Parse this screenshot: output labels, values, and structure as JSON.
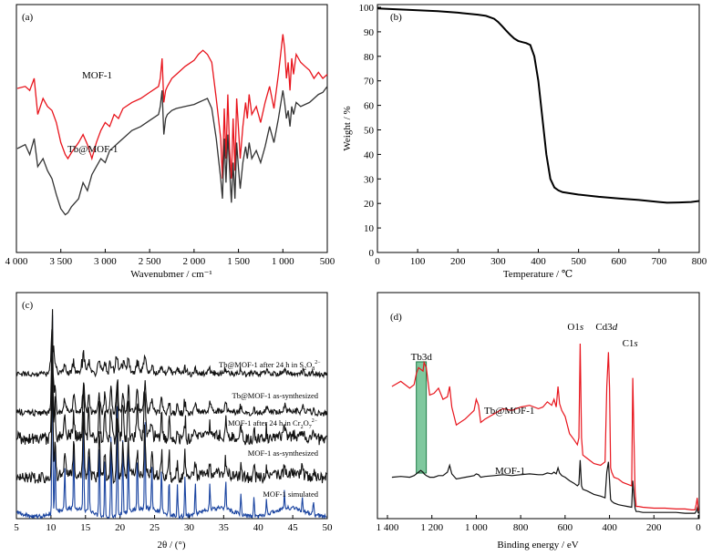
{
  "chart_data": [
    {
      "panel": "(a)",
      "type": "line",
      "xlabel": "Wavenubmer / cm⁻¹",
      "ylabel": "",
      "xlim": [
        4000,
        500
      ],
      "x_reversed": true,
      "xticks": [
        4000,
        3500,
        3000,
        2500,
        2000,
        1500,
        1000,
        500
      ],
      "xtick_labels": [
        "4 000",
        "3 500",
        "3 000",
        "2 500",
        "2 000",
        "1 500",
        "1 000",
        "500"
      ],
      "ylim": [
        0,
        100
      ],
      "y_ticks_shown": false,
      "grid": false,
      "annotations": [
        "MOF-1",
        "Tb@MOF-1"
      ],
      "series": [
        {
          "name": "MOF-1",
          "color": "#e8141c",
          "x": [
            3990,
            3900,
            3850,
            3800,
            3760,
            3700,
            3650,
            3600,
            3550,
            3500,
            3450,
            3420,
            3380,
            3300,
            3250,
            3200,
            3150,
            3100,
            3050,
            3000,
            2950,
            2900,
            2850,
            2800,
            2700,
            2600,
            2500,
            2400,
            2380,
            2360,
            2340,
            2320,
            2300,
            2250,
            2200,
            2100,
            2000,
            1950,
            1900,
            1850,
            1800,
            1750,
            1700,
            1680,
            1660,
            1640,
            1620,
            1600,
            1580,
            1560,
            1540,
            1520,
            1500,
            1480,
            1450,
            1420,
            1400,
            1380,
            1350,
            1300,
            1250,
            1200,
            1150,
            1100,
            1050,
            1000,
            980,
            960,
            940,
            920,
            900,
            880,
            850,
            800,
            750,
            700,
            650,
            600,
            550,
            500
          ],
          "y": [
            65,
            66,
            64,
            70,
            52,
            60,
            56,
            54,
            48,
            38,
            32,
            30,
            33,
            38,
            42,
            37,
            30,
            38,
            44,
            48,
            46,
            52,
            50,
            55,
            58,
            60,
            63,
            66,
            70,
            80,
            58,
            64,
            66,
            70,
            72,
            76,
            79,
            82,
            84,
            82,
            78,
            60,
            40,
            20,
            55,
            30,
            62,
            35,
            20,
            50,
            24,
            60,
            45,
            30,
            46,
            58,
            50,
            62,
            52,
            56,
            48,
            58,
            66,
            55,
            72,
            92,
            85,
            70,
            78,
            64,
            80,
            72,
            82,
            78,
            76,
            74,
            70,
            73,
            70,
            72
          ]
        },
        {
          "name": "Tb@MOF-1",
          "color": "#333333",
          "x": [
            3990,
            3900,
            3850,
            3800,
            3760,
            3700,
            3650,
            3600,
            3550,
            3500,
            3450,
            3420,
            3380,
            3300,
            3250,
            3200,
            3150,
            3100,
            3050,
            3000,
            2950,
            2900,
            2850,
            2800,
            2700,
            2600,
            2500,
            2400,
            2380,
            2360,
            2340,
            2320,
            2300,
            2250,
            2200,
            2100,
            2000,
            1950,
            1900,
            1850,
            1800,
            1750,
            1700,
            1680,
            1660,
            1640,
            1620,
            1600,
            1580,
            1560,
            1540,
            1520,
            1500,
            1480,
            1450,
            1420,
            1400,
            1380,
            1350,
            1300,
            1250,
            1200,
            1150,
            1100,
            1050,
            1000,
            980,
            960,
            940,
            920,
            900,
            880,
            850,
            800,
            750,
            700,
            650,
            600,
            550,
            500
          ],
          "y": [
            35,
            37,
            32,
            40,
            26,
            30,
            24,
            20,
            12,
            5,
            2,
            3,
            6,
            10,
            18,
            14,
            22,
            26,
            30,
            28,
            34,
            36,
            38,
            40,
            44,
            46,
            49,
            52,
            56,
            64,
            42,
            50,
            52,
            54,
            55,
            56,
            57,
            58,
            59,
            60,
            55,
            40,
            20,
            10,
            40,
            18,
            42,
            25,
            8,
            28,
            10,
            38,
            25,
            15,
            28,
            36,
            30,
            38,
            30,
            34,
            28,
            36,
            46,
            38,
            50,
            64,
            58,
            50,
            54,
            46,
            56,
            52,
            58,
            56,
            57,
            58,
            60,
            62,
            63,
            66
          ]
        }
      ]
    },
    {
      "panel": "(b)",
      "type": "line",
      "xlabel": "Temperature / ℃",
      "ylabel": "Weight / %",
      "xlim": [
        0,
        800
      ],
      "ylim": [
        0,
        100
      ],
      "xticks": [
        0,
        100,
        200,
        300,
        400,
        500,
        600,
        700,
        800
      ],
      "yticks": [
        0,
        10,
        20,
        30,
        40,
        50,
        60,
        70,
        80,
        90,
        100
      ],
      "grid": false,
      "series": [
        {
          "name": "",
          "color": "#000000",
          "x": [
            0,
            50,
            100,
            150,
            200,
            250,
            270,
            290,
            300,
            310,
            320,
            330,
            340,
            350,
            360,
            370,
            380,
            390,
            400,
            410,
            420,
            430,
            440,
            450,
            460,
            500,
            550,
            600,
            650,
            700,
            720,
            750,
            780,
            800
          ],
          "y": [
            99.5,
            99.2,
            98.8,
            98.4,
            97.8,
            97.0,
            96.5,
            95.3,
            94.0,
            92.3,
            90.5,
            88.8,
            87.3,
            86.3,
            85.8,
            85.4,
            84.6,
            80,
            70,
            55,
            40,
            30,
            26.5,
            25.3,
            24.6,
            23.6,
            22.7,
            22,
            21.4,
            20.6,
            20.3,
            20.4,
            20.6,
            21
          ]
        }
      ]
    },
    {
      "panel": "(c)",
      "type": "line",
      "xlabel": "2θ / (°)",
      "ylabel": "",
      "xlim": [
        5,
        50
      ],
      "xticks": [
        5,
        10,
        15,
        20,
        25,
        30,
        35,
        40,
        45,
        50
      ],
      "y_ticks_shown": false,
      "grid": false,
      "peaks_2theta": [
        10.2,
        10.6,
        12.0,
        13.3,
        14.7,
        15.5,
        17.0,
        17.8,
        18.7,
        19.6,
        20.4,
        21.2,
        22.5,
        23.6,
        24.6,
        26.0,
        27.1,
        28.3,
        29.4,
        30.9,
        33.0,
        35.3,
        37.5,
        39.4,
        41.2,
        43.8,
        46.4,
        48.0
      ],
      "peak_heights": [
        1.0,
        0.3,
        0.2,
        0.28,
        0.5,
        0.3,
        0.35,
        0.28,
        0.4,
        0.55,
        0.35,
        0.32,
        0.28,
        0.45,
        0.2,
        0.22,
        0.18,
        0.16,
        0.2,
        0.14,
        0.12,
        0.14,
        0.1,
        0.1,
        0.08,
        0.08,
        0.07,
        0.06
      ],
      "series": [
        {
          "name": "MOF-1 simulated",
          "color": "#1a44a0"
        },
        {
          "name": "MOF-1 as-synthesized",
          "color": "#111111"
        },
        {
          "name": "MOF-1 after 24 h in Cr₂O₇²⁻",
          "color": "#111111"
        },
        {
          "name": "Tb@MOF-1 as-synthesized",
          "color": "#111111"
        },
        {
          "name": "Tb@MOF-1 after 24 h in S₂O₈²⁻",
          "color": "#111111"
        }
      ],
      "labels": {
        "s0": "MOF-1 simulated",
        "s1": "MOF-1 as-synthesized",
        "s2_main": "MOF-1 after 24 h in Cr",
        "s2_sub1": "2",
        "s2_mid": "O",
        "s2_sub2": "7",
        "s2_sup": "2−",
        "s3": "Tb@MOF-1 as-synthesized",
        "s4_main": "Tb@MOF-1 after 24 h in S",
        "s4_sub1": "2",
        "s4_mid": "O",
        "s4_sub2": "8",
        "s4_sup": "2−"
      }
    },
    {
      "panel": "(d)",
      "type": "line",
      "xlabel": "Binding energy / eV",
      "ylabel": "",
      "xlim": [
        1400,
        0
      ],
      "x_reversed": true,
      "xticks": [
        1400,
        1200,
        1000,
        800,
        600,
        400,
        200,
        0
      ],
      "xtick_labels": [
        "1 400",
        "1 200",
        "1 000",
        "800",
        "600",
        "400",
        "200",
        "0"
      ],
      "y_ticks_shown": false,
      "grid": false,
      "highlight": {
        "label": "Tb3d",
        "x_range": [
          1270,
          1225
        ],
        "color": "#3aaa6a"
      },
      "peak_labels": [
        {
          "el": "O1",
          "orb": "s",
          "x": 532
        },
        {
          "el": "Cd3",
          "orb": "d",
          "x": 405
        },
        {
          "el": "C1",
          "orb": "s",
          "x": 285
        }
      ],
      "series": [
        {
          "name": "Tb@MOF-1",
          "color": "#e8141c",
          "x": [
            1380,
            1340,
            1300,
            1280,
            1270,
            1260,
            1250,
            1240,
            1235,
            1225,
            1210,
            1190,
            1170,
            1150,
            1130,
            1120,
            1110,
            1090,
            1050,
            1010,
            1000,
            990,
            980,
            960,
            920,
            880,
            840,
            800,
            760,
            720,
            700,
            680,
            660,
            650,
            640,
            632,
            625,
            615,
            600,
            580,
            560,
            545,
            538,
            532,
            526,
            520,
            500,
            470,
            440,
            420,
            412,
            405,
            400,
            395,
            390,
            380,
            360,
            340,
            320,
            300,
            295,
            290,
            285,
            280,
            270,
            250,
            200,
            150,
            100,
            60,
            30,
            15,
            10,
            5,
            0
          ],
          "y": [
            150,
            156,
            148,
            152,
            165,
            172,
            170,
            168,
            178,
            172,
            140,
            142,
            148,
            135,
            138,
            150,
            126,
            105,
            112,
            122,
            135,
            128,
            108,
            112,
            118,
            124,
            122,
            126,
            128,
            124,
            126,
            132,
            128,
            135,
            126,
            150,
            130,
            122,
            115,
            95,
            88,
            82,
            90,
            200,
            90,
            70,
            66,
            60,
            58,
            62,
            150,
            190,
            148,
            55,
            50,
            44,
            42,
            38,
            36,
            34,
            160,
            90,
            28,
            10,
            10,
            9,
            8,
            8,
            7,
            7,
            6,
            6,
            12,
            20,
            5
          ]
        },
        {
          "name": "MOF-1",
          "color": "#111111",
          "x": [
            1380,
            1340,
            1300,
            1280,
            1270,
            1260,
            1250,
            1240,
            1235,
            1225,
            1210,
            1190,
            1170,
            1150,
            1130,
            1120,
            1110,
            1090,
            1050,
            1010,
            1000,
            990,
            980,
            960,
            920,
            880,
            840,
            800,
            760,
            720,
            700,
            680,
            660,
            650,
            640,
            632,
            625,
            615,
            600,
            580,
            560,
            545,
            538,
            532,
            526,
            520,
            500,
            470,
            440,
            420,
            412,
            405,
            400,
            395,
            390,
            380,
            360,
            340,
            320,
            300,
            295,
            290,
            285,
            280,
            270,
            250,
            200,
            150,
            100,
            60,
            30,
            15,
            10,
            5,
            0
          ],
          "y": [
            44,
            45,
            44,
            46,
            48,
            50,
            52,
            50,
            48,
            46,
            44,
            44,
            46,
            46,
            50,
            58,
            48,
            42,
            44,
            46,
            48,
            47,
            44,
            45,
            46,
            47,
            46,
            47,
            48,
            47,
            47,
            49,
            48,
            50,
            48,
            55,
            49,
            46,
            44,
            40,
            37,
            34,
            36,
            64,
            34,
            30,
            28,
            24,
            22,
            20,
            50,
            62,
            40,
            18,
            16,
            14,
            12,
            11,
            10,
            9,
            40,
            22,
            8,
            4,
            4,
            3,
            3,
            3,
            3,
            2,
            2,
            2,
            4,
            8,
            2
          ]
        }
      ]
    }
  ]
}
